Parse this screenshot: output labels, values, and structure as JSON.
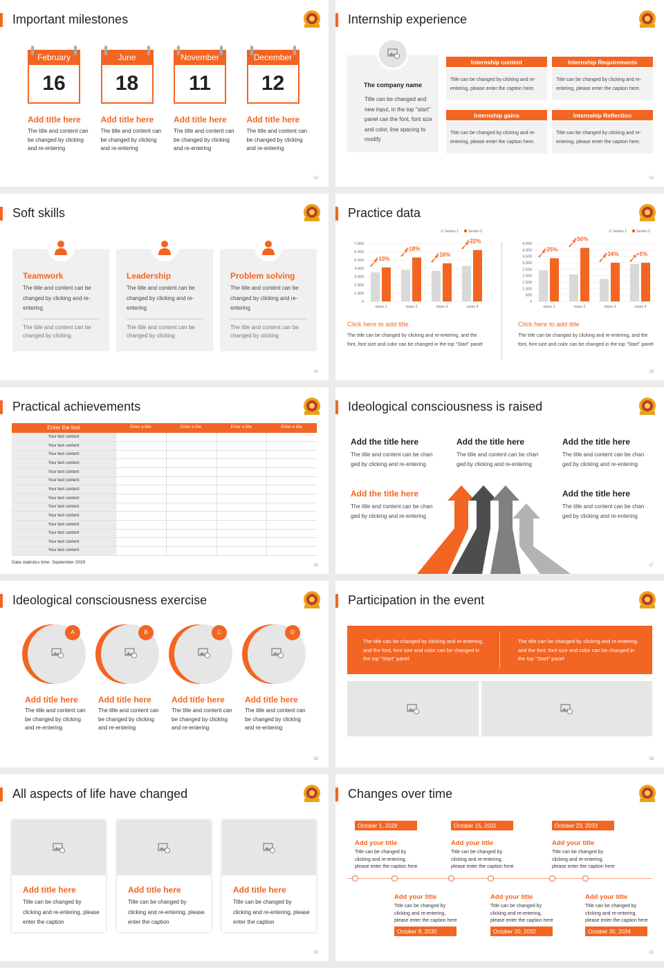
{
  "slides": [
    {
      "title": "Important milestones",
      "page": "12",
      "items": [
        {
          "month": "February",
          "day": "16",
          "heading": "Add title here",
          "text": "The title and content can be changed by clicking and re-entering"
        },
        {
          "month": "June",
          "day": "18",
          "heading": "Add title here",
          "text": "The title and content can be changed by clicking and re-entering"
        },
        {
          "month": "November",
          "day": "11",
          "heading": "Add title here",
          "text": "The title and content can be changed by clicking and re-entering"
        },
        {
          "month": "December",
          "day": "12",
          "heading": "Add title here",
          "text": "The title and content can be changed by clicking and re-entering"
        }
      ]
    },
    {
      "title": "Internship experience",
      "page": "13",
      "company": {
        "name": "The company name",
        "text": "Title can be changed and new input, in the top \"start\" panel can the font, font size and color, line spacing to modify"
      },
      "boxes": [
        {
          "heading": "Internship content",
          "text": "Title can be changed by clicking and re-entering, please enter the caption here."
        },
        {
          "heading": "Internship Requirements",
          "text": "Title can be changed by clicking and re-entering, please enter the caption here."
        },
        {
          "heading": "Internship gains",
          "text": "Title can be changed by clicking and re-entering, please enter the caption here."
        },
        {
          "heading": "Internship Reflection",
          "text": "Title can be changed by clicking and re-entering, please enter the caption here."
        }
      ]
    },
    {
      "title": "Soft skills",
      "page": "14",
      "cards": [
        {
          "heading": "Teamwork",
          "text": "The title and content can be changed by clicking and re-entering",
          "note": "The title and content can be changed by clicking"
        },
        {
          "heading": "Leadership",
          "text": "The title and content can be changed by clicking and re-entering",
          "note": "The title and content can be changed by clicking"
        },
        {
          "heading": "Problem solving",
          "text": "The title and content can be changed by clicking and re-entering",
          "note": "The title and content can be changed by clicking"
        }
      ]
    },
    {
      "title": "Practice data",
      "page": "15",
      "charts": [
        {
          "type": "bar",
          "categories": [
            "class 1",
            "class 2",
            "class 3",
            "class 4"
          ],
          "series": [
            {
              "name": "Series 1",
              "color": "#d9d9d9",
              "values": [
                3.5,
                3.8,
                3.7,
                4.3
              ]
            },
            {
              "name": "Series 2",
              "color": "#f26522",
              "values": [
                4.1,
                5.3,
                4.6,
                6.2
              ]
            }
          ],
          "annotations": [
            "+10%",
            "+18%",
            "+16%",
            "+22%"
          ],
          "ylim": [
            0,
            7
          ],
          "yticks": [
            0,
            {
              "value": 1,
              "label": "1.000"
            },
            {
              "value": 2,
              "label": "2.000"
            },
            {
              "value": 3,
              "label": "3.000"
            },
            {
              "value": 4,
              "label": "4.000"
            },
            {
              "value": 5,
              "label": "5.000"
            },
            {
              "value": 6,
              "label": "6.000"
            },
            {
              "value": 7,
              "label": "7.000"
            }
          ],
          "heading": "Click here to add title",
          "text": "The title can be changed by clicking and re-entering, and the font, font size and color can be changed in the top \"Start\" panel"
        },
        {
          "type": "bar",
          "categories": [
            "class 1",
            "class 2",
            "class 3",
            "class 4"
          ],
          "series": [
            {
              "name": "Series 1",
              "color": "#d9d9d9",
              "values": [
                2400,
                2100,
                1750,
                2900
              ]
            },
            {
              "name": "Series 2",
              "color": "#f26522",
              "values": [
                3350,
                4150,
                3000,
                3000
              ]
            }
          ],
          "annotations": [
            "+25%",
            "+50%",
            "+34%",
            "+5%"
          ],
          "ylim": [
            0,
            4500
          ],
          "yticks": [
            0,
            500,
            {
              "value": 1000,
              "label": "1,000"
            },
            {
              "value": 1500,
              "label": "1,500"
            },
            {
              "value": 2000,
              "label": "2,000"
            },
            {
              "value": 2500,
              "label": "2,500"
            },
            {
              "value": 3000,
              "label": "3,000"
            },
            {
              "value": 3500,
              "label": "3,500"
            },
            {
              "value": 4000,
              "label": "4,000"
            },
            {
              "value": 4500,
              "label": "4,500"
            }
          ],
          "heading": "Click here to add title",
          "text": "The title can be changed by clicking and re-entering, and the font, font size and color can be changed in the top \"Start\" panel"
        }
      ]
    },
    {
      "title": "Practical achievements",
      "page": "16",
      "table": {
        "header": [
          "Enter the text",
          "Enter a title",
          "Enter a title",
          "Enter a title",
          "Enter a title"
        ],
        "rows": [
          "Your text content",
          "Your text content",
          "Your text content",
          "Your text content",
          "Your text content",
          "Your text content",
          "Your text content",
          "Your text content",
          "Your text content",
          "Your text content",
          "Your text content",
          "Your text content",
          "Your text content",
          "Your text content"
        ]
      },
      "footnote": "Data statistics time: September 2029"
    },
    {
      "title": "Ideological consciousness is raised",
      "page": "17",
      "items": [
        {
          "heading": "Add the title here",
          "text": "The title and content can be chan ged by clicking and re-entering"
        },
        {
          "heading": "Add the title here",
          "text": "The title and content can be chan ged by clicking and re-entering"
        },
        {
          "heading": "Add the title here",
          "text": "The title and content can be chan ged by clicking and re-entering"
        },
        {
          "heading": "Add the title here",
          "text": "The title and content can be chan ged by clicking and re-entering"
        },
        {
          "heading": "Add the title here",
          "text": "The title and content can be chan ged by clicking and re-entering"
        }
      ]
    },
    {
      "title": "Ideological consciousness exercise",
      "page": "18",
      "items": [
        {
          "letter": "A",
          "heading": "Add title here",
          "text": "The title and content can be changed by clicking and re-entering"
        },
        {
          "letter": "B",
          "heading": "Add title here",
          "text": "The title and content can be changed by clicking and re-entering"
        },
        {
          "letter": "C",
          "heading": "Add title here",
          "text": "The title and content can be changed by clicking and re-entering"
        },
        {
          "letter": "D",
          "heading": "Add title here",
          "text": "The title and content can be changed by clicking and re-entering"
        }
      ]
    },
    {
      "title": "Participation in the event",
      "page": "19",
      "banner": [
        "The title can be changed by clicking and re-entering, and the font, font size and color can be changed in the top \"Start\" panel",
        "The title can be changed by clicking and re-entering, and the font, font size and color can be changed in the top \"Start\" panel"
      ]
    },
    {
      "title": "All aspects of life have changed",
      "page": "20",
      "cards": [
        {
          "heading": "Add title here",
          "text": "Title can be changed by clicking and re-entering, please enter the caption"
        },
        {
          "heading": "Add title here",
          "text": "Title can be changed by clicking and re-entering, please enter the caption"
        },
        {
          "heading": "Add title here",
          "text": "Title can be changed by clicking and re-entering, please enter the caption"
        }
      ]
    },
    {
      "title": "Changes over time",
      "page": "21",
      "events": [
        {
          "date": "October 1, 2029",
          "heading": "Add your title",
          "text": "Title can be changed by clicking and re-entering, please enter the caption here"
        },
        {
          "date": "October 8, 2030",
          "heading": "Add your title",
          "text": "Title can be changed by clicking and re-entering, please enter the caption here"
        },
        {
          "date": "October 15, 2031",
          "heading": "Add your title",
          "text": "Title can be changed by clicking and re-entering, please enter the caption here"
        },
        {
          "date": "October 20, 2032",
          "heading": "Add your title",
          "text": "Title can be changed by clicking and re-entering, please enter the caption here"
        },
        {
          "date": "October 23, 2033",
          "heading": "Add your title",
          "text": "Title can be changed by clicking and re-entering, please enter the caption here"
        },
        {
          "date": "October 30, 2034",
          "heading": "Add your title",
          "text": "Title can be changed by clicking and re-entering, please enter the caption here"
        }
      ]
    }
  ]
}
